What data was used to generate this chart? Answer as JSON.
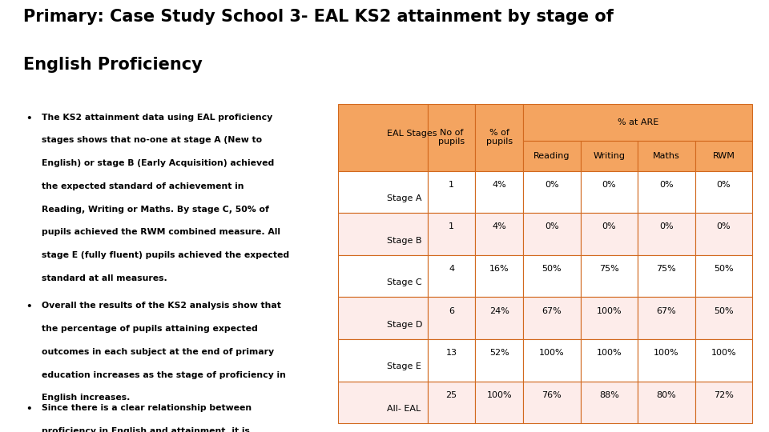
{
  "title_line1": "Primary: Case Study School 3- EAL KS2 attainment by stage of",
  "title_line2": "English Proficiency",
  "bullets": [
    "The KS2 attainment data using EAL proficiency\nstages shows that no-one at stage A (New to\nEnglish) or stage B (Early Acquisition) achieved\nthe expected standard of achievement in\nReading, Writing or Maths. By stage C, 50% of\npupils achieved the RWM combined measure. All\nstage E (fully fluent) pupils achieved the expected\nstandard at all measures.",
    "Overall the results of the KS2 analysis show that\nthe percentage of pupils attaining expected\noutcomes in each subject at the end of primary\neducation increases as the stage of proficiency in\nEnglish increases.",
    "Since there is a clear relationship between\nproficiency in English and attainment, it is\nimportant to use this   information as a\ndiagnostic tool to track progress.  It is important\ntherefore, we continues to collect information on\nEAL proficiency."
  ],
  "table_rows": [
    [
      "Stage A",
      "1",
      "4%",
      "0%",
      "0%",
      "0%",
      "0%"
    ],
    [
      "Stage B",
      "1",
      "4%",
      "0%",
      "0%",
      "0%",
      "0%"
    ],
    [
      "Stage C",
      "4",
      "16%",
      "50%",
      "75%",
      "75%",
      "50%"
    ],
    [
      "Stage D",
      "6",
      "24%",
      "67%",
      "100%",
      "67%",
      "50%"
    ],
    [
      "Stage E",
      "13",
      "52%",
      "100%",
      "100%",
      "100%",
      "100%"
    ],
    [
      "All- EAL",
      "25",
      "100%",
      "76%",
      "88%",
      "80%",
      "72%"
    ]
  ],
  "row_colors": [
    "#FFFFFF",
    "#FDECEA",
    "#FFFFFF",
    "#FDECEA",
    "#FFFFFF",
    "#FDECEA"
  ],
  "header_bg": "#F4A460",
  "border_color": "#D2691E",
  "text_color": "#000000",
  "title_color": "#000000",
  "bg_color": "#FFFFFF",
  "col_labels": [
    "EAL Stages",
    "No of\npupils",
    "% of\npupils",
    "Reading",
    "Writing",
    "Maths",
    "RWM"
  ],
  "are_label": "% at ARE"
}
